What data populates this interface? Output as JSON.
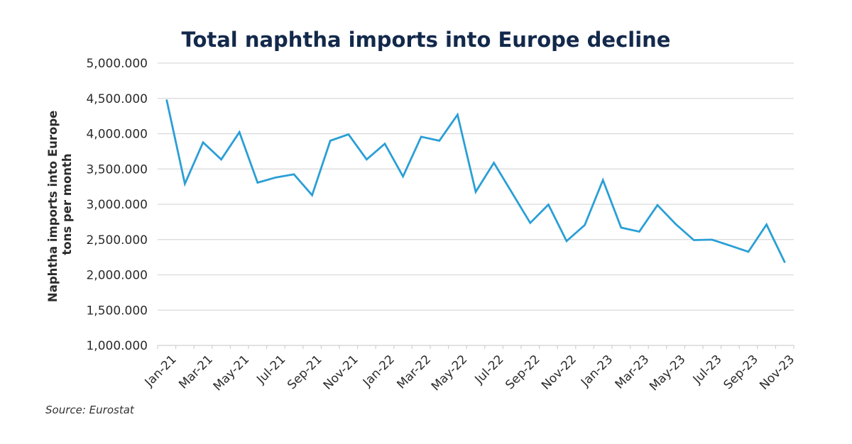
{
  "chart_data": {
    "type": "line",
    "title": "Total naphtha imports into Europe decline",
    "ylabel_lines": [
      "Naphtha imports into Europe",
      "tons per month"
    ],
    "xlabel": "",
    "source": "Source: Eurostat",
    "ylim": [
      1000000,
      5000000
    ],
    "yticks": [
      1000000,
      1500000,
      2000000,
      2500000,
      3000000,
      3500000,
      4000000,
      4500000,
      5000000
    ],
    "ytick_labels": [
      "1,000.000",
      "1,500.000",
      "2,000.000",
      "2,500.000",
      "3,000.000",
      "3,500.000",
      "4,000.000",
      "4,500.000",
      "5,000.000"
    ],
    "grid": true,
    "legend": "none",
    "line_color": "#2a9fd6",
    "categories": [
      "Jan-21",
      "Feb-21",
      "Mar-21",
      "Apr-21",
      "May-21",
      "Jun-21",
      "Jul-21",
      "Aug-21",
      "Sep-21",
      "Oct-21",
      "Nov-21",
      "Dec-21",
      "Jan-22",
      "Feb-22",
      "Mar-22",
      "Apr-22",
      "May-22",
      "Jun-22",
      "Jul-22",
      "Aug-22",
      "Sep-22",
      "Oct-22",
      "Nov-22",
      "Dec-22",
      "Jan-23",
      "Feb-23",
      "Mar-23",
      "Apr-23",
      "May-23",
      "Jun-23",
      "Jul-23",
      "Aug-23",
      "Sep-23",
      "Oct-23",
      "Nov-23"
    ],
    "xtick_labels_shown": [
      "Jan-21",
      "Mar-21",
      "May-21",
      "Jul-21",
      "Sep-21",
      "Nov-21",
      "Jan-22",
      "Mar-22",
      "May-22",
      "Jul-22",
      "Sep-22",
      "Nov-22",
      "Jan-23",
      "Mar-23",
      "May-23",
      "Jul-23",
      "Sep-23",
      "Nov-23"
    ],
    "values": [
      4475000,
      3290000,
      3877000,
      3635000,
      4021000,
      3307000,
      3380000,
      3424000,
      3129000,
      3900000,
      3991000,
      3635000,
      3857000,
      3394000,
      3957000,
      3900000,
      4269000,
      3176000,
      3588000,
      3162000,
      2736000,
      2995000,
      2478000,
      2706000,
      3343000,
      2669000,
      2612000,
      2988000,
      2720000,
      2492000,
      2498000,
      2414000,
      2327000,
      2713000,
      2180000
    ]
  }
}
